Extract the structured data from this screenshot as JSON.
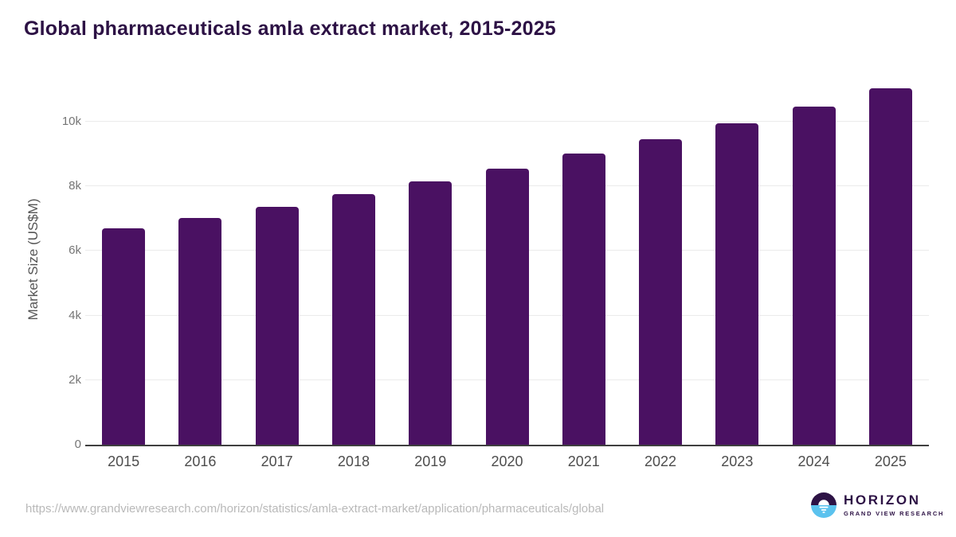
{
  "header": {
    "title": "Global pharmaceuticals amla extract market, 2015-2025"
  },
  "footer": {
    "source_url": "https://www.grandviewresearch.com/horizon/statistics/amla-extract-market/application/pharmaceuticals/global",
    "logo": {
      "name": "HORIZON",
      "subtitle": "GRAND VIEW RESEARCH"
    }
  },
  "colors": {
    "bar": "#4a1162",
    "title_text": "#2d1245",
    "ytick_text": "#757575",
    "xtick_text": "#4d4d4d",
    "axis_title_text": "#555555",
    "gridline": "#ebebeb",
    "baseline": "#3f3f3f",
    "url_text": "#b9b9b9",
    "logo_blue": "#5bc2ee",
    "logo_purple": "#2d1245"
  },
  "chart_data": {
    "type": "bar",
    "title": "Global pharmaceuticals amla extract market, 2015-2025",
    "categories": [
      "2015",
      "2016",
      "2017",
      "2018",
      "2019",
      "2020",
      "2021",
      "2022",
      "2023",
      "2024",
      "2025"
    ],
    "values": [
      6700,
      7020,
      7370,
      7760,
      8150,
      8550,
      9010,
      9450,
      9940,
      10460,
      11040
    ],
    "unit": "US$M",
    "xlabel": "",
    "ylabel": "Market Size (US$M)",
    "ylim": [
      0,
      11300
    ],
    "yticks": [
      {
        "value": 0,
        "label": "0"
      },
      {
        "value": 2000,
        "label": "2k"
      },
      {
        "value": 4000,
        "label": "4k"
      },
      {
        "value": 6000,
        "label": "6k"
      },
      {
        "value": 8000,
        "label": "8k"
      },
      {
        "value": 10000,
        "label": "10k"
      }
    ],
    "grid": "horizontal",
    "legend": "none",
    "bar_color": "#4a1162"
  }
}
